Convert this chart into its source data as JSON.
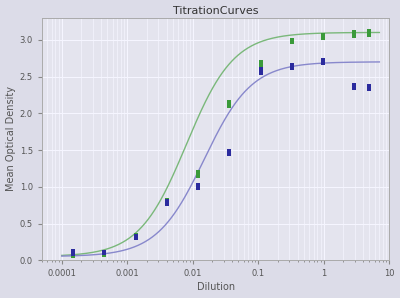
{
  "title": "TitrationCurves",
  "xlabel": "Dilution",
  "ylabel": "Mean Optical Density",
  "ylim": [
    0,
    3.3
  ],
  "yticks": [
    0,
    0.5,
    1.0,
    1.5,
    2.0,
    2.5,
    3.0
  ],
  "bg_fig_color": "#dcdce8",
  "bg_ax_color": "#e4e4ee",
  "grid_color": "#f5f5ff",
  "green_color": "#3a9a3a",
  "blue_color": "#2b2b9e",
  "green_curve_color": "#7ab87a",
  "blue_curve_color": "#8888cc",
  "green_points_x": [
    0.00015,
    0.00015,
    0.00045,
    0.00045,
    0.00135,
    0.00135,
    0.00405,
    0.00405,
    0.01215,
    0.01215,
    0.03645,
    0.03645,
    0.10935,
    0.10935,
    0.32805,
    0.32805,
    0.98415,
    0.98415,
    2.95245,
    2.95245,
    5.0,
    5.0
  ],
  "green_points_y": [
    0.06,
    0.07,
    0.07,
    0.07,
    0.32,
    0.35,
    0.78,
    0.82,
    1.15,
    1.2,
    2.1,
    2.15,
    2.65,
    2.7,
    2.97,
    3.0,
    3.02,
    3.07,
    3.05,
    3.1,
    3.07,
    3.12
  ],
  "blue_points_x": [
    0.00015,
    0.00015,
    0.00045,
    0.00045,
    0.00135,
    0.00135,
    0.00405,
    0.00405,
    0.01215,
    0.01215,
    0.03645,
    0.03645,
    0.10935,
    0.10935,
    0.32805,
    0.32805,
    0.98415,
    0.98415,
    2.95245,
    2.95245,
    5.0,
    5.0
  ],
  "blue_points_y": [
    0.08,
    0.12,
    0.1,
    0.11,
    0.3,
    0.33,
    0.77,
    0.8,
    0.98,
    1.02,
    1.44,
    1.48,
    2.55,
    2.6,
    2.62,
    2.65,
    2.68,
    2.72,
    2.35,
    2.38,
    2.33,
    2.37
  ],
  "title_fontsize": 8,
  "label_fontsize": 7,
  "tick_fontsize": 6
}
